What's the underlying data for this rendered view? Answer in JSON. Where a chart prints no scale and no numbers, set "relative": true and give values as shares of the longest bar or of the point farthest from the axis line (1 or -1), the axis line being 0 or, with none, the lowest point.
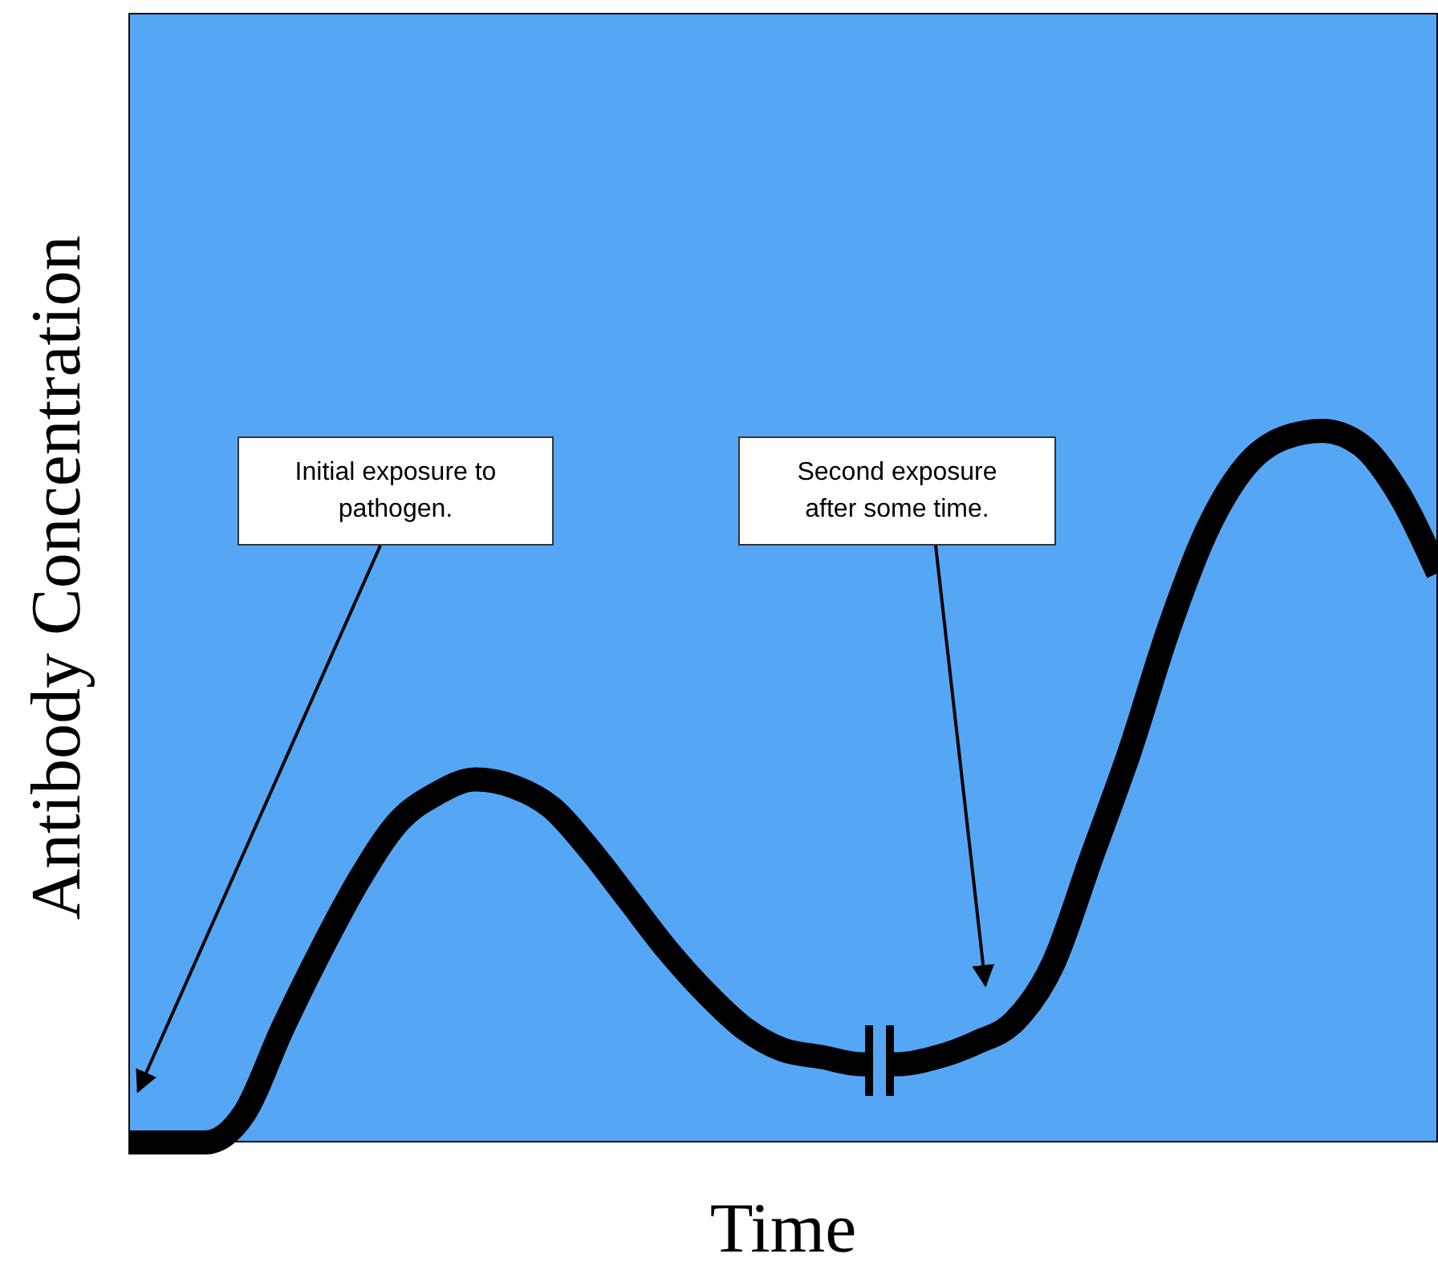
{
  "chart_data": {
    "type": "line",
    "relative": true,
    "xlabel": "Time",
    "ylabel": "Antibody Concentration",
    "color": "#000000",
    "annotations": [
      "Initial exposure to pathogen.",
      "Second exposure after some time."
    ],
    "categories": [
      null,
      null,
      null,
      null,
      null,
      null,
      null,
      null,
      null,
      null,
      null,
      null,
      null,
      null,
      null,
      null,
      null,
      null,
      null,
      null,
      null,
      null,
      null,
      null,
      null,
      null,
      null,
      null,
      null,
      null,
      null,
      null,
      null,
      null,
      null
    ],
    "values": [
      0,
      0,
      0,
      0.04,
      0.16,
      0.27,
      0.37,
      0.45,
      0.49,
      0.51,
      0.5,
      0.47,
      0.41,
      0.34,
      0.27,
      0.21,
      0.16,
      0.13,
      0.12,
      0.11,
      0.11,
      0.12,
      0.14,
      0.17,
      0.25,
      0.4,
      0.55,
      0.72,
      0.86,
      0.95,
      0.99,
      1,
      0.98,
      0.91,
      0.8
    ]
  }
}
